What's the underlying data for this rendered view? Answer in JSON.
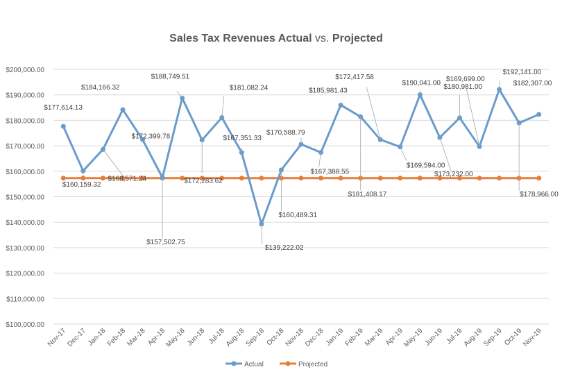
{
  "chart_data": {
    "type": "line",
    "title": {
      "part1": "Sales Tax Revenues Actual ",
      "part2": "vs.",
      "part3": " Projected"
    },
    "categories": [
      "Nov-17",
      "Dec-17",
      "Jan-18",
      "Feb-18",
      "Mar-18",
      "Apr-18",
      "May-18",
      "Jun-18",
      "Jul-18",
      "Aug-18",
      "Sep-18",
      "Oct-18",
      "Nov-18",
      "Dec-18",
      "Jan-19",
      "Feb-19",
      "Mar-19",
      "Apr-19",
      "May-19",
      "Jun-19",
      "Jul-19",
      "Aug-19",
      "Sep-19",
      "Oct-19",
      "Nov-19"
    ],
    "ylim": [
      100000,
      200000
    ],
    "yticks": [
      100000,
      110000,
      120000,
      130000,
      140000,
      150000,
      160000,
      170000,
      180000,
      190000,
      200000
    ],
    "ytick_labels": [
      "$100,000.00",
      "$110,000.00",
      "$120,000.00",
      "$130,000.00",
      "$140,000.00",
      "$150,000.00",
      "$160,000.00",
      "$170,000.00",
      "$180,000.00",
      "$190,000.00",
      "$200,000.00"
    ],
    "grid": "horizontal",
    "legend": "bottom",
    "series": [
      {
        "name": "Actual",
        "color": "#6a9bcb",
        "values": [
          177614.13,
          160159.32,
          168571.24,
          184166.32,
          172399.78,
          157502.75,
          188749.51,
          172283.62,
          181082.24,
          167351.33,
          139222.02,
          160489.31,
          170588.79,
          167388.55,
          185981.43,
          181408.17,
          172417.58,
          169594.0,
          190041.0,
          173232.0,
          180981.0,
          169699.0,
          192141.0,
          178966.0,
          182307.0
        ],
        "labels": [
          "$177,614.13",
          "$160,159.32",
          "$168,571.24",
          "$184,166.32",
          "$172,399.78",
          "$157,502.75",
          "$188,749.51",
          "$172,283.62",
          "$181,082.24",
          "$167,351.33",
          "$139,222.02",
          "$160,489.31",
          "$170,588.79",
          "$167,388.55",
          "$185,981.43",
          "$181,408.17",
          "$172,417.58",
          "$169,594.00",
          "$190,041.00",
          "$173,232.00",
          "$180,981.00",
          "$169,699.00",
          "$192,141.00",
          "$178,966.00",
          "$182,307.00"
        ]
      },
      {
        "name": "Projected",
        "color": "#e57e3a",
        "values": [
          157300,
          157300,
          157300,
          157300,
          157300,
          157300,
          157300,
          157300,
          157300,
          157300,
          157300,
          157300,
          157300,
          157300,
          157300,
          157300,
          157300,
          157300,
          157300,
          157300,
          157300,
          157300,
          157300,
          157300,
          157300
        ]
      }
    ]
  }
}
